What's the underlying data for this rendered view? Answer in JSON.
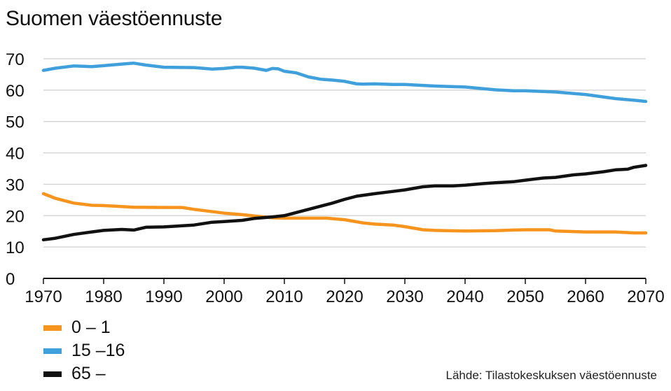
{
  "title": "Suomen väestöennuste",
  "source": "Lähde: Tilastokeskuksen väestöennuste",
  "chart_data": {
    "type": "line",
    "title": "Suomen väestöennuste",
    "xlabel": "",
    "ylabel": "",
    "xlim": [
      1970,
      2070
    ],
    "ylim": [
      0,
      70
    ],
    "x_ticks": [
      1970,
      1980,
      1990,
      2000,
      2010,
      2020,
      2030,
      2040,
      2050,
      2060,
      2070
    ],
    "y_ticks": [
      0,
      10,
      20,
      30,
      40,
      50,
      60,
      70
    ],
    "grid": "horizontal",
    "legend_position": "bottom-left",
    "series": [
      {
        "name": "0 – 1",
        "color": "#f7941d",
        "x": [
          1970,
          1972,
          1975,
          1978,
          1980,
          1985,
          1990,
          1993,
          1995,
          2000,
          2003,
          2005,
          2008,
          2010,
          2015,
          2017,
          2020,
          2023,
          2025,
          2028,
          2030,
          2033,
          2035,
          2040,
          2045,
          2048,
          2050,
          2054,
          2055,
          2060,
          2065,
          2068,
          2070
        ],
        "y": [
          27,
          25.5,
          24,
          23.3,
          23.2,
          22.7,
          22.6,
          22.6,
          22,
          20.8,
          20.3,
          19.9,
          19.3,
          19.2,
          19.2,
          19.2,
          18.7,
          17.7,
          17.3,
          17,
          16.5,
          15.5,
          15.3,
          15.1,
          15.2,
          15.4,
          15.5,
          15.5,
          15.1,
          14.8,
          14.8,
          14.5,
          14.5
        ]
      },
      {
        "name": "15 –16",
        "color": "#3fa0dc",
        "x": [
          1970,
          1972,
          1975,
          1978,
          1980,
          1983,
          1985,
          1987,
          1990,
          1995,
          1998,
          2000,
          2002,
          2003,
          2005,
          2007,
          2008,
          2009,
          2010,
          2012,
          2014,
          2016,
          2018,
          2020,
          2022,
          2023,
          2025,
          2028,
          2030,
          2033,
          2035,
          2040,
          2045,
          2048,
          2050,
          2055,
          2060,
          2065,
          2068,
          2070
        ],
        "y": [
          66.3,
          67,
          67.7,
          67.5,
          67.8,
          68.3,
          68.6,
          68,
          67.3,
          67.2,
          66.7,
          66.9,
          67.3,
          67.3,
          67,
          66.3,
          66.9,
          66.8,
          66,
          65.5,
          64.2,
          63.5,
          63.2,
          62.8,
          62,
          61.9,
          62,
          61.8,
          61.8,
          61.5,
          61.3,
          61,
          60.1,
          59.8,
          59.8,
          59.4,
          58.6,
          57.3,
          56.8,
          56.4
        ]
      },
      {
        "name": "65 –",
        "color": "#111111",
        "x": [
          1970,
          1972,
          1975,
          1978,
          1980,
          1983,
          1985,
          1987,
          1990,
          1995,
          1998,
          2000,
          2003,
          2005,
          2008,
          2010,
          2012,
          2015,
          2018,
          2020,
          2022,
          2025,
          2028,
          2030,
          2033,
          2035,
          2038,
          2040,
          2043,
          2045,
          2048,
          2050,
          2053,
          2055,
          2058,
          2060,
          2063,
          2065,
          2067,
          2068,
          2070
        ],
        "y": [
          12.3,
          12.8,
          14,
          14.8,
          15.3,
          15.6,
          15.4,
          16.3,
          16.4,
          17,
          17.9,
          18.1,
          18.5,
          19.1,
          19.6,
          20,
          21,
          22.5,
          24,
          25.2,
          26.2,
          27,
          27.7,
          28.2,
          29.2,
          29.5,
          29.5,
          29.7,
          30.2,
          30.5,
          30.8,
          31.3,
          32,
          32.2,
          33,
          33.3,
          34,
          34.6,
          34.8,
          35.4,
          36
        ]
      }
    ]
  }
}
